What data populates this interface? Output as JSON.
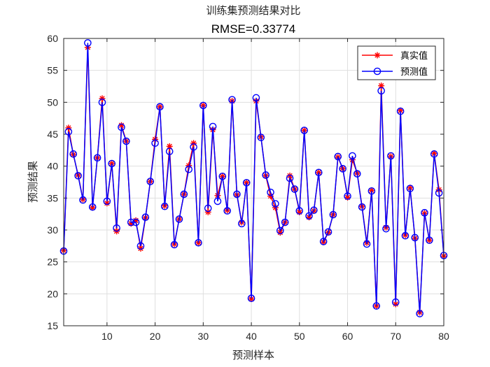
{
  "chart_data": {
    "type": "line",
    "title": "训练集预测结果对比",
    "subtitle": "RMSE=0.33774",
    "xlabel": "预测样本",
    "ylabel": "预测结果",
    "xlim": [
      1,
      80
    ],
    "ylim": [
      15,
      60
    ],
    "xticks": [
      10,
      20,
      30,
      40,
      50,
      60,
      70,
      80
    ],
    "yticks": [
      15,
      20,
      25,
      30,
      35,
      40,
      45,
      50,
      55,
      60
    ],
    "grid": true,
    "legend_position": "top-right",
    "x": [
      1,
      2,
      3,
      4,
      5,
      6,
      7,
      8,
      9,
      10,
      11,
      12,
      13,
      14,
      15,
      16,
      17,
      18,
      19,
      20,
      21,
      22,
      23,
      24,
      25,
      26,
      27,
      28,
      29,
      30,
      31,
      32,
      33,
      34,
      35,
      36,
      37,
      38,
      39,
      40,
      41,
      42,
      43,
      44,
      45,
      46,
      47,
      48,
      49,
      50,
      51,
      52,
      53,
      54,
      55,
      56,
      57,
      58,
      59,
      60,
      61,
      62,
      63,
      64,
      65,
      66,
      67,
      68,
      69,
      70,
      71,
      72,
      73,
      74,
      75,
      76,
      77,
      78,
      79,
      80
    ],
    "series": [
      {
        "name": "真实值",
        "color": "#ff0000",
        "marker": "asterisk",
        "values": [
          26.8,
          46.0,
          41.8,
          38.6,
          34.8,
          58.6,
          33.5,
          41.3,
          50.6,
          34.2,
          40.4,
          29.8,
          46.4,
          43.9,
          31.0,
          31.5,
          27.1,
          31.9,
          37.6,
          44.2,
          49.3,
          33.8,
          43.1,
          27.8,
          31.7,
          35.6,
          40.1,
          43.6,
          28.0,
          49.5,
          32.8,
          45.7,
          35.4,
          38.4,
          33.1,
          50.2,
          35.5,
          31.2,
          37.4,
          19.2,
          50.2,
          44.6,
          38.5,
          35.3,
          33.5,
          29.6,
          31.2,
          38.5,
          36.4,
          32.8,
          45.6,
          32.0,
          33.0,
          39.0,
          28.1,
          29.6,
          32.4,
          41.4,
          39.6,
          35.1,
          41.0,
          38.9,
          33.7,
          28.0,
          36.2,
          18.1,
          52.6,
          30.4,
          41.5,
          18.4,
          48.7,
          29.2,
          36.6,
          28.7,
          17.1,
          32.6,
          28.4,
          42.0,
          36.3,
          25.9
        ]
      },
      {
        "name": "预测值",
        "color": "#0000ff",
        "marker": "circle",
        "values": [
          26.7,
          45.4,
          41.9,
          38.5,
          34.7,
          59.3,
          33.6,
          41.3,
          50.0,
          34.5,
          40.4,
          30.3,
          46.1,
          43.9,
          31.2,
          31.2,
          27.5,
          32.0,
          37.6,
          43.6,
          49.3,
          33.7,
          42.3,
          27.7,
          31.7,
          35.6,
          39.5,
          43.0,
          28.0,
          49.5,
          33.4,
          46.2,
          34.5,
          38.4,
          33.0,
          50.4,
          35.6,
          31.0,
          37.4,
          19.3,
          50.7,
          44.5,
          38.6,
          35.9,
          34.1,
          29.9,
          31.2,
          38.1,
          36.4,
          33.0,
          45.6,
          32.2,
          33.1,
          39.0,
          28.2,
          29.7,
          32.4,
          41.5,
          39.6,
          35.3,
          41.6,
          38.8,
          33.6,
          27.8,
          36.1,
          18.1,
          51.8,
          30.2,
          41.6,
          18.7,
          48.6,
          29.1,
          36.5,
          28.8,
          16.9,
          32.7,
          28.4,
          41.9,
          35.8,
          26.0
        ]
      }
    ]
  }
}
